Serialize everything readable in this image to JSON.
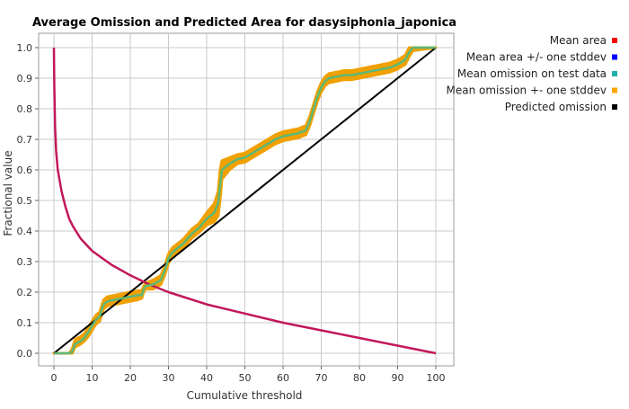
{
  "chart_data": {
    "type": "line",
    "title": "Average Omission and Predicted Area for dasysiphonia_japonica",
    "xlabel": "Cumulative threshold",
    "ylabel": "Fractional value",
    "xlim": [
      0,
      100
    ],
    "ylim": [
      0,
      1
    ],
    "x_ticks": [
      "0",
      "10",
      "20",
      "30",
      "40",
      "50",
      "60",
      "70",
      "80",
      "90",
      "100"
    ],
    "y_ticks": [
      "0.0",
      "0.1",
      "0.2",
      "0.3",
      "0.4",
      "0.5",
      "0.6",
      "0.7",
      "0.8",
      "0.9",
      "1.0"
    ],
    "grid": true,
    "legend_position": "top-right",
    "legend": [
      {
        "name": "Mean area",
        "color": "#ff0000"
      },
      {
        "name": "Mean area +/- one stddev",
        "color": "#0000ff"
      },
      {
        "name": "Mean omission on test data",
        "color": "#20b2aa"
      },
      {
        "name": "Mean omission +- one stddev",
        "color": "#ffa500"
      },
      {
        "name": "Predicted omission",
        "color": "#000000"
      }
    ],
    "series": [
      {
        "name": "Mean area",
        "color": "#c2185b",
        "x": [
          0,
          0.1,
          0.3,
          0.6,
          1,
          2,
          3,
          4,
          5,
          7,
          10,
          15,
          20,
          25,
          30,
          40,
          50,
          60,
          70,
          80,
          90,
          100
        ],
        "y": [
          1.0,
          0.88,
          0.74,
          0.66,
          0.6,
          0.53,
          0.48,
          0.44,
          0.415,
          0.375,
          0.335,
          0.29,
          0.255,
          0.225,
          0.2,
          0.16,
          0.13,
          0.1,
          0.075,
          0.05,
          0.025,
          0.0
        ]
      },
      {
        "name": "Mean omission on test data",
        "color": "#5cb878",
        "x": [
          0,
          4,
          4.8,
          5.5,
          7,
          8,
          9,
          10,
          11,
          12,
          12.5,
          13,
          14,
          16,
          18,
          20,
          22,
          23,
          23.5,
          24,
          26,
          28,
          29,
          30,
          31,
          32,
          34,
          36,
          38,
          40,
          42,
          43,
          43.5,
          44,
          46,
          48,
          50,
          52,
          54,
          56,
          58,
          60,
          62,
          64,
          66,
          67,
          68,
          69,
          70,
          71,
          72,
          74,
          76,
          78,
          80,
          82,
          84,
          86,
          88,
          90,
          92,
          93,
          94,
          100
        ],
        "y": [
          0.0,
          0.0,
          0.005,
          0.03,
          0.04,
          0.05,
          0.07,
          0.09,
          0.11,
          0.12,
          0.14,
          0.16,
          0.17,
          0.175,
          0.18,
          0.185,
          0.19,
          0.19,
          0.21,
          0.22,
          0.225,
          0.24,
          0.27,
          0.31,
          0.33,
          0.34,
          0.36,
          0.39,
          0.41,
          0.44,
          0.46,
          0.49,
          0.55,
          0.6,
          0.62,
          0.635,
          0.64,
          0.655,
          0.67,
          0.685,
          0.7,
          0.71,
          0.715,
          0.72,
          0.73,
          0.76,
          0.8,
          0.84,
          0.87,
          0.89,
          0.9,
          0.905,
          0.91,
          0.91,
          0.915,
          0.92,
          0.925,
          0.93,
          0.935,
          0.945,
          0.96,
          0.985,
          1.0,
          1.0
        ]
      },
      {
        "name": "Predicted omission",
        "color": "#000000",
        "x": [
          0,
          100
        ],
        "y": [
          0,
          1
        ]
      }
    ],
    "band": {
      "name": "Mean omission +- one stddev",
      "color": "#f0a000",
      "x": [
        0,
        4,
        4.8,
        5.5,
        7,
        8,
        9,
        10,
        11,
        12,
        12.5,
        13,
        14,
        16,
        18,
        20,
        22,
        23,
        23.5,
        24,
        26,
        28,
        29,
        30,
        31,
        32,
        34,
        36,
        38,
        40,
        42,
        43,
        43.5,
        44,
        46,
        48,
        50,
        52,
        54,
        56,
        58,
        60,
        62,
        64,
        66,
        67,
        68,
        69,
        70,
        71,
        72,
        74,
        76,
        78,
        80,
        82,
        84,
        86,
        88,
        90,
        92,
        93,
        94,
        100
      ],
      "lower": [
        0.0,
        0.0,
        0.0,
        0.02,
        0.03,
        0.04,
        0.055,
        0.075,
        0.095,
        0.105,
        0.125,
        0.145,
        0.155,
        0.16,
        0.165,
        0.17,
        0.175,
        0.18,
        0.2,
        0.21,
        0.21,
        0.225,
        0.255,
        0.295,
        0.315,
        0.325,
        0.345,
        0.375,
        0.395,
        0.42,
        0.43,
        0.45,
        0.5,
        0.57,
        0.6,
        0.62,
        0.625,
        0.64,
        0.655,
        0.67,
        0.685,
        0.695,
        0.7,
        0.705,
        0.715,
        0.745,
        0.785,
        0.825,
        0.855,
        0.875,
        0.885,
        0.89,
        0.895,
        0.895,
        0.9,
        0.905,
        0.91,
        0.915,
        0.92,
        0.93,
        0.945,
        0.97,
        0.99,
        1.0
      ],
      "upper": [
        0.0,
        0.0,
        0.015,
        0.045,
        0.055,
        0.065,
        0.085,
        0.105,
        0.125,
        0.135,
        0.155,
        0.175,
        0.185,
        0.19,
        0.195,
        0.2,
        0.205,
        0.205,
        0.22,
        0.23,
        0.24,
        0.255,
        0.285,
        0.325,
        0.345,
        0.355,
        0.375,
        0.405,
        0.425,
        0.46,
        0.49,
        0.53,
        0.6,
        0.63,
        0.64,
        0.65,
        0.655,
        0.67,
        0.685,
        0.7,
        0.715,
        0.725,
        0.73,
        0.735,
        0.745,
        0.775,
        0.815,
        0.855,
        0.885,
        0.905,
        0.915,
        0.92,
        0.925,
        0.925,
        0.93,
        0.935,
        0.94,
        0.945,
        0.95,
        0.96,
        0.975,
        1.0,
        1.0,
        1.0
      ]
    }
  }
}
